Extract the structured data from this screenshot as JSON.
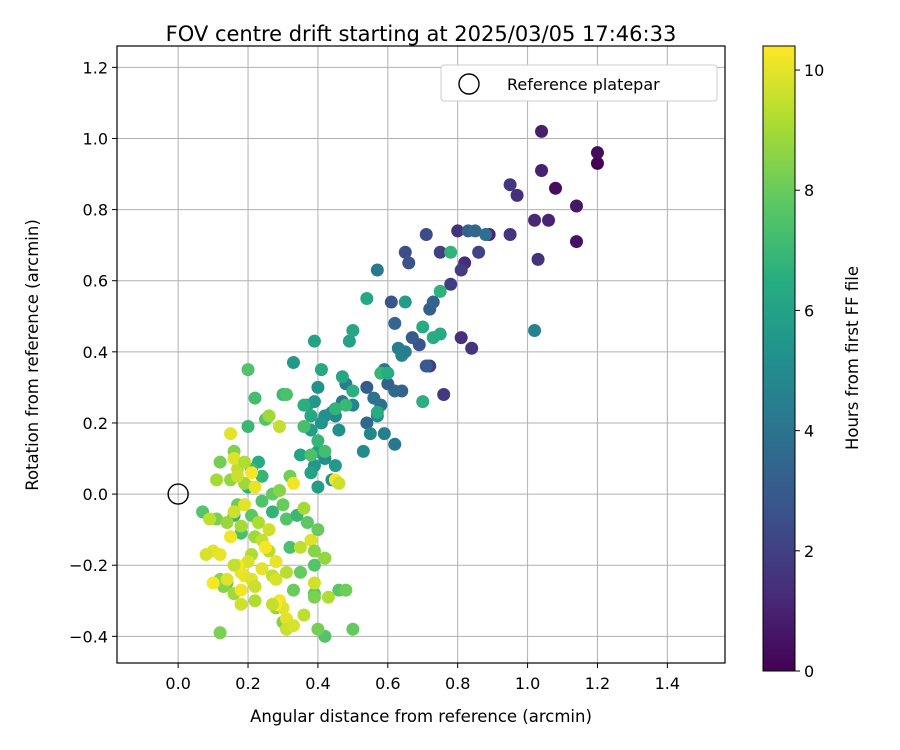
{
  "chart_data": {
    "type": "scatter",
    "title": "FOV centre drift starting at 2025/03/05 17:46:33",
    "xlabel": "Angular distance from reference (arcmin)",
    "ylabel": "Rotation from reference (arcmin)",
    "xlim": [
      -0.175,
      1.565
    ],
    "ylim": [
      -0.475,
      1.26
    ],
    "xticks": [
      "0.0",
      "0.2",
      "0.4",
      "0.6",
      "0.8",
      "1.0",
      "1.2",
      "1.4"
    ],
    "yticks": [
      "−0.4",
      "−0.2",
      "0.0",
      "0.2",
      "0.4",
      "0.6",
      "0.8",
      "1.0",
      "1.2"
    ],
    "xtick_values": [
      0.0,
      0.2,
      0.4,
      0.6,
      0.8,
      1.0,
      1.2,
      1.4
    ],
    "ytick_values": [
      -0.4,
      -0.2,
      0.0,
      0.2,
      0.4,
      0.6,
      0.8,
      1.0,
      1.2
    ],
    "grid": true,
    "legend": {
      "position": "top-right",
      "entries": [
        "Reference platepar"
      ]
    },
    "reference_point": {
      "x": 0.0,
      "y": 0.0,
      "label": "Reference platepar"
    },
    "colorbar": {
      "label": "Hours from first FF file",
      "colormap": "viridis",
      "range": [
        0,
        10.4
      ],
      "ticks": [
        "0",
        "2",
        "4",
        "6",
        "8",
        "10"
      ],
      "tick_values": [
        0,
        2,
        4,
        6,
        8,
        10
      ]
    },
    "points": [
      [
        1.2,
        0.93,
        0.0
      ],
      [
        1.2,
        0.96,
        0.3
      ],
      [
        1.08,
        0.86,
        0.4
      ],
      [
        1.14,
        0.71,
        0.5
      ],
      [
        1.14,
        0.81,
        0.7
      ],
      [
        1.04,
        1.02,
        0.9
      ],
      [
        1.04,
        0.91,
        1.0
      ],
      [
        1.06,
        0.77,
        1.1
      ],
      [
        1.02,
        0.77,
        1.2
      ],
      [
        0.97,
        0.84,
        1.4
      ],
      [
        1.03,
        0.66,
        1.5
      ],
      [
        0.95,
        0.73,
        1.6
      ],
      [
        0.95,
        0.87,
        1.7
      ],
      [
        0.89,
        0.73,
        1.1
      ],
      [
        0.82,
        0.65,
        1.3
      ],
      [
        0.8,
        0.74,
        1.5
      ],
      [
        0.84,
        0.41,
        1.6
      ],
      [
        0.81,
        0.44,
        1.4
      ],
      [
        0.76,
        0.28,
        1.8
      ],
      [
        0.72,
        0.36,
        1.9
      ],
      [
        0.78,
        0.59,
        1.9
      ],
      [
        0.75,
        0.68,
        2.0
      ],
      [
        0.86,
        0.68,
        2.1
      ],
      [
        0.81,
        0.63,
        1.9
      ],
      [
        0.71,
        0.73,
        2.4
      ],
      [
        0.65,
        0.68,
        2.5
      ],
      [
        0.66,
        0.65,
        2.7
      ],
      [
        0.61,
        0.54,
        2.8
      ],
      [
        0.69,
        0.42,
        2.7
      ],
      [
        0.71,
        0.36,
        3.0
      ],
      [
        0.72,
        0.52,
        3.2
      ],
      [
        0.73,
        0.54,
        3.4
      ],
      [
        0.67,
        0.44,
        3.1
      ],
      [
        0.64,
        0.29,
        3.3
      ],
      [
        0.62,
        0.48,
        3.5
      ],
      [
        0.83,
        0.74,
        3.3
      ],
      [
        0.85,
        0.74,
        3.6
      ],
      [
        0.88,
        0.73,
        3.8
      ],
      [
        0.62,
        0.29,
        3.6
      ],
      [
        0.58,
        0.25,
        3.9
      ],
      [
        0.6,
        0.31,
        3.3
      ],
      [
        0.54,
        0.3,
        3.1
      ],
      [
        0.54,
        0.2,
        3.5
      ],
      [
        0.56,
        0.27,
        4.0
      ],
      [
        0.59,
        0.35,
        4.1
      ],
      [
        0.57,
        0.63,
        4.2
      ],
      [
        0.63,
        0.41,
        4.3
      ],
      [
        0.64,
        0.39,
        4.6
      ],
      [
        0.65,
        0.4,
        4.4
      ],
      [
        0.62,
        0.14,
        4.2
      ],
      [
        1.02,
        0.46,
        4.6
      ],
      [
        0.59,
        0.17,
        4.5
      ],
      [
        0.55,
        0.17,
        4.8
      ],
      [
        0.57,
        0.22,
        4.9
      ],
      [
        0.53,
        0.12,
        5.0
      ],
      [
        0.5,
        0.25,
        4.7
      ],
      [
        0.48,
        0.31,
        4.4
      ],
      [
        0.47,
        0.26,
        4.2
      ],
      [
        0.44,
        0.23,
        4.6
      ],
      [
        0.45,
        0.22,
        4.9
      ],
      [
        0.42,
        0.22,
        5.1
      ],
      [
        0.46,
        0.18,
        5.2
      ],
      [
        0.4,
        0.3,
        5.3
      ],
      [
        0.39,
        0.26,
        5.5
      ],
      [
        0.37,
        0.25,
        5.7
      ],
      [
        0.38,
        0.18,
        5.8
      ],
      [
        0.41,
        0.2,
        5.4
      ],
      [
        0.42,
        0.1,
        5.2
      ],
      [
        0.39,
        0.08,
        5.5
      ],
      [
        0.4,
        0.12,
        5.9
      ],
      [
        0.45,
        0.08,
        5.6
      ],
      [
        0.44,
        0.04,
        5.3
      ],
      [
        0.4,
        0.02,
        5.8
      ],
      [
        0.38,
        0.06,
        6.0
      ],
      [
        0.35,
        0.11,
        6.1
      ],
      [
        0.33,
        0.37,
        5.6
      ],
      [
        0.41,
        0.35,
        6.3
      ],
      [
        0.39,
        0.43,
        6.0
      ],
      [
        0.49,
        0.43,
        6.0
      ],
      [
        0.5,
        0.46,
        6.2
      ],
      [
        0.54,
        0.55,
        6.2
      ],
      [
        0.65,
        0.54,
        5.8
      ],
      [
        0.7,
        0.47,
        6.4
      ],
      [
        0.73,
        0.44,
        6.5
      ],
      [
        0.75,
        0.45,
        6.4
      ],
      [
        0.75,
        0.57,
        6.7
      ],
      [
        0.78,
        0.68,
        6.8
      ],
      [
        0.7,
        0.26,
        6.6
      ],
      [
        0.58,
        0.34,
        6.9
      ],
      [
        0.6,
        0.34,
        6.5
      ],
      [
        0.57,
        0.23,
        6.4
      ],
      [
        0.5,
        0.29,
        6.6
      ],
      [
        0.47,
        0.33,
        6.2
      ],
      [
        0.45,
        0.24,
        6.8
      ],
      [
        0.48,
        0.25,
        7.0
      ],
      [
        0.36,
        0.25,
        6.6
      ],
      [
        0.38,
        0.22,
        6.3
      ],
      [
        0.4,
        0.15,
        6.9
      ],
      [
        0.42,
        0.12,
        7.2
      ],
      [
        0.38,
        0.11,
        7.4
      ],
      [
        0.36,
        0.19,
        7.3
      ],
      [
        0.3,
        0.28,
        7.1
      ],
      [
        0.31,
        0.28,
        7.4
      ],
      [
        0.25,
        0.21,
        7.6
      ],
      [
        0.22,
        0.27,
        7.2
      ],
      [
        0.2,
        0.35,
        7.5
      ],
      [
        0.2,
        0.19,
        7.0
      ],
      [
        0.2,
        0.02,
        6.7
      ],
      [
        0.24,
        0.05,
        6.9
      ],
      [
        0.23,
        0.09,
        6.4
      ],
      [
        0.21,
        0.07,
        7.1
      ],
      [
        0.16,
        -0.06,
        6.8
      ],
      [
        0.18,
        -0.11,
        7.3
      ],
      [
        0.21,
        -0.06,
        7.7
      ],
      [
        0.24,
        -0.02,
        7.5
      ],
      [
        0.27,
        0.0,
        7.9
      ],
      [
        0.3,
        -0.03,
        8.0
      ],
      [
        0.27,
        -0.05,
        6.8
      ],
      [
        0.31,
        -0.07,
        7.6
      ],
      [
        0.34,
        -0.06,
        7.0
      ],
      [
        0.37,
        -0.08,
        7.8
      ],
      [
        0.32,
        -0.15,
        7.4
      ],
      [
        0.35,
        -0.22,
        7.9
      ],
      [
        0.33,
        -0.27,
        8.0
      ],
      [
        0.39,
        -0.2,
        7.6
      ],
      [
        0.39,
        -0.28,
        7.8
      ],
      [
        0.32,
        0.05,
        8.2
      ],
      [
        0.29,
        0.01,
        8.5
      ],
      [
        0.39,
        -0.29,
        8.3
      ],
      [
        0.46,
        -0.27,
        7.7
      ],
      [
        0.48,
        -0.27,
        8.1
      ],
      [
        0.5,
        -0.38,
        7.9
      ],
      [
        0.42,
        -0.4,
        7.6
      ],
      [
        0.4,
        -0.38,
        8.2
      ],
      [
        0.3,
        -0.36,
        8.4
      ],
      [
        0.28,
        -0.32,
        8.7
      ],
      [
        0.12,
        -0.39,
        8.3
      ],
      [
        0.14,
        -0.25,
        8.0
      ],
      [
        0.13,
        -0.26,
        8.5
      ],
      [
        0.16,
        -0.28,
        8.9
      ],
      [
        0.12,
        -0.24,
        8.6
      ],
      [
        0.07,
        -0.05,
        7.6
      ],
      [
        0.11,
        -0.07,
        8.3
      ],
      [
        0.17,
        -0.03,
        8.1
      ],
      [
        0.14,
        -0.08,
        8.8
      ],
      [
        0.18,
        -0.09,
        9.0
      ],
      [
        0.15,
        0.04,
        8.7
      ],
      [
        0.19,
        0.03,
        8.9
      ],
      [
        0.17,
        0.07,
        9.4
      ],
      [
        0.16,
        0.12,
        8.4
      ],
      [
        0.12,
        0.09,
        8.2
      ],
      [
        0.11,
        0.04,
        9.0
      ],
      [
        0.09,
        -0.07,
        9.4
      ],
      [
        0.22,
        -0.12,
        8.9
      ],
      [
        0.23,
        -0.08,
        9.1
      ],
      [
        0.24,
        -0.13,
        9.5
      ],
      [
        0.26,
        -0.1,
        9.7
      ],
      [
        0.21,
        -0.17,
        9.2
      ],
      [
        0.2,
        -0.19,
        9.8
      ],
      [
        0.18,
        -0.22,
        10.0
      ],
      [
        0.17,
        -0.2,
        10.3
      ],
      [
        0.19,
        -0.23,
        10.1
      ],
      [
        0.21,
        -0.24,
        9.9
      ],
      [
        0.18,
        -0.27,
        10.2
      ],
      [
        0.22,
        -0.26,
        9.6
      ],
      [
        0.24,
        -0.21,
        10.0
      ],
      [
        0.27,
        -0.23,
        9.4
      ],
      [
        0.28,
        -0.19,
        10.1
      ],
      [
        0.26,
        -0.16,
        9.3
      ],
      [
        0.25,
        -0.15,
        10.3
      ],
      [
        0.28,
        -0.24,
        9.8
      ],
      [
        0.29,
        -0.3,
        10.2
      ],
      [
        0.3,
        -0.32,
        9.9
      ],
      [
        0.28,
        -0.31,
        10.4
      ],
      [
        0.31,
        -0.35,
        10.0
      ],
      [
        0.31,
        -0.38,
        9.6
      ],
      [
        0.33,
        -0.37,
        9.8
      ],
      [
        0.27,
        -0.31,
        9.5
      ],
      [
        0.22,
        -0.3,
        9.2
      ],
      [
        0.18,
        -0.31,
        9.7
      ],
      [
        0.16,
        -0.2,
        9.5
      ],
      [
        0.14,
        -0.24,
        9.9
      ],
      [
        0.1,
        -0.16,
        10.0
      ],
      [
        0.1,
        -0.25,
        10.3
      ],
      [
        0.12,
        -0.17,
        10.1
      ],
      [
        0.08,
        -0.17,
        9.8
      ],
      [
        0.15,
        -0.12,
        10.2
      ],
      [
        0.16,
        -0.05,
        9.7
      ],
      [
        0.19,
        -0.03,
        10.0
      ],
      [
        0.22,
        0.02,
        10.1
      ],
      [
        0.16,
        0.1,
        9.9
      ],
      [
        0.19,
        0.09,
        9.2
      ],
      [
        0.17,
        0.05,
        9.6
      ],
      [
        0.21,
        0.06,
        10.3
      ],
      [
        0.15,
        0.17,
        10.0
      ],
      [
        0.29,
        0.19,
        9.5
      ],
      [
        0.26,
        0.22,
        8.9
      ],
      [
        0.33,
        0.03,
        10.2
      ],
      [
        0.45,
        0.04,
        10.3
      ],
      [
        0.46,
        0.03,
        9.6
      ],
      [
        0.36,
        -0.04,
        9.0
      ],
      [
        0.35,
        -0.15,
        9.4
      ],
      [
        0.31,
        -0.22,
        9.3
      ],
      [
        0.38,
        -0.13,
        9.9
      ],
      [
        0.39,
        -0.25,
        9.7
      ],
      [
        0.36,
        -0.34,
        9.4
      ],
      [
        0.43,
        -0.29,
        9.2
      ],
      [
        0.42,
        -0.18,
        8.7
      ],
      [
        0.39,
        -0.16,
        8.5
      ],
      [
        0.4,
        -0.1,
        8.0
      ]
    ]
  }
}
